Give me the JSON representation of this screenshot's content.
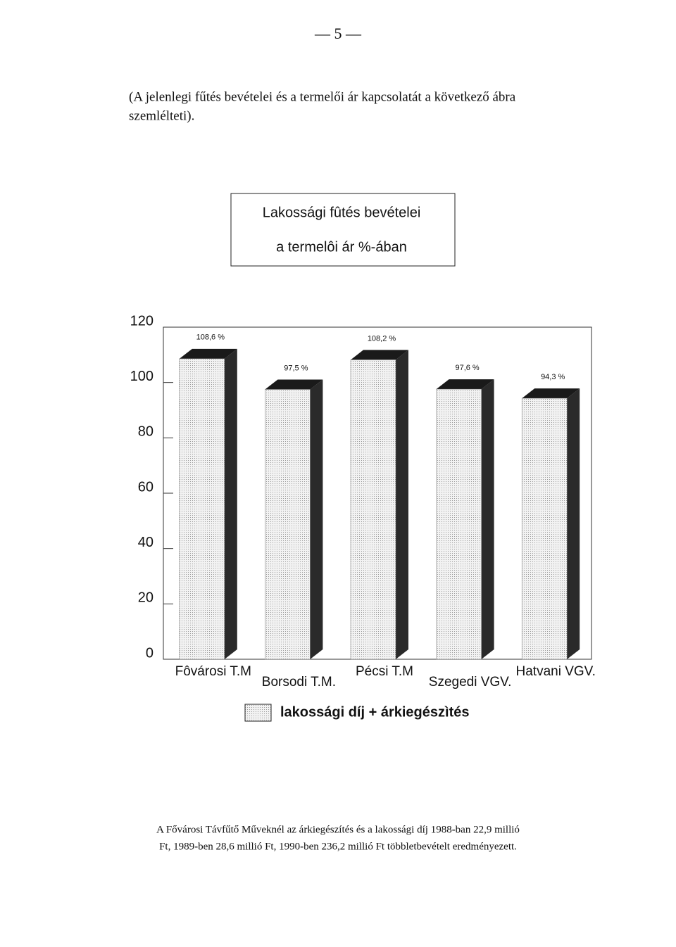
{
  "page_number": "— 5 —",
  "intro": [
    "(A jelenlegi fűtés bevételei és a termelői ár kapcsolatát a következő ábra",
    "szemlélteti)."
  ],
  "chart_data": {
    "type": "bar3d",
    "title": "Lakossági fûtés bevételei",
    "subtitle": "a termelôi ár %-ában",
    "categories": [
      "Fôvárosi T.M",
      "Borsodi T.M.",
      "Pécsi T.M",
      "Szegedi VGV.",
      "Hatvani VGV."
    ],
    "series": [
      {
        "name": "lakossági díj + árkiegészìtés",
        "color": "#e6e6e6",
        "values": [
          108.6,
          97.5,
          108.2,
          97.6,
          94.3
        ],
        "value_labels": [
          "108,6 %",
          "97,5 %",
          "108,2 %",
          "97,6 %",
          "94,3 %"
        ]
      }
    ],
    "ylim": [
      0,
      120
    ],
    "yticks": [
      0,
      20,
      40,
      60,
      80,
      100,
      120
    ],
    "grid": false
  },
  "footer": [
    "A Fővárosi Távfűtő Műveknél az árkiegészítés és a lakossági díj 1988-ban 22,9 millió",
    "Ft, 1989-ben 28,6 millió Ft, 1990-ben 236,2 millió Ft többletbevételt eredményezett."
  ]
}
